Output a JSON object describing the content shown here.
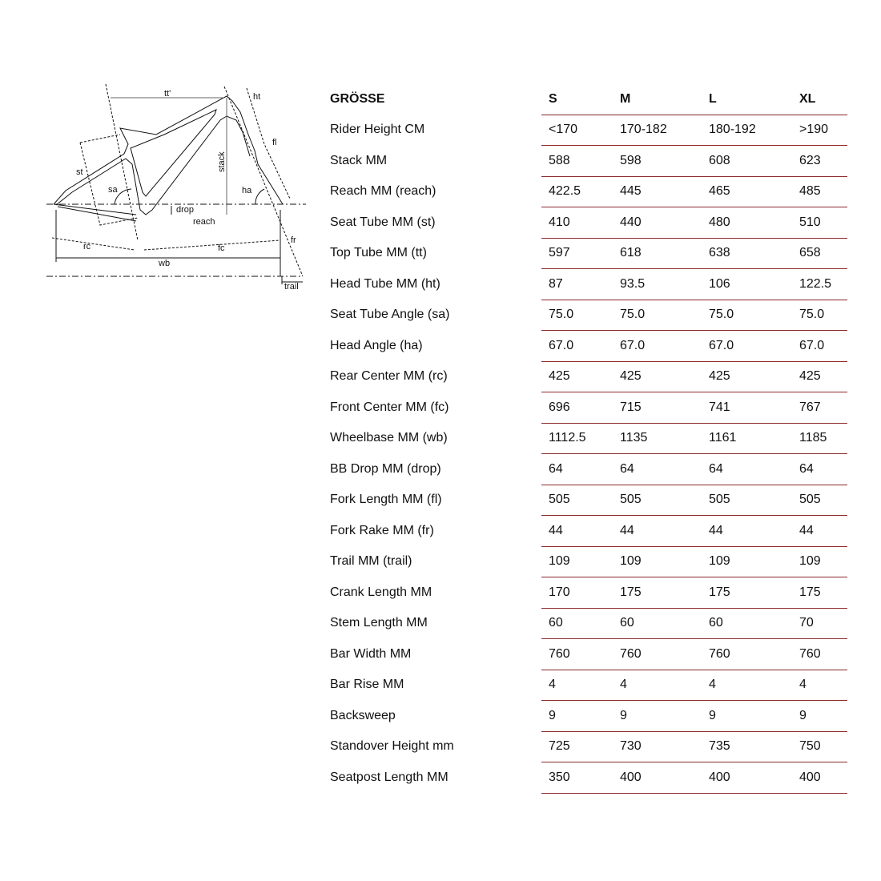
{
  "diagram": {
    "labels": [
      "tt'",
      "ht",
      "fl",
      "st",
      "stack",
      "sa",
      "ha",
      "drop",
      "reach",
      "rc",
      "fc",
      "fr",
      "wb",
      "trail"
    ]
  },
  "table": {
    "header": {
      "label": "GRÖSSE",
      "sizes": [
        "S",
        "M",
        "L",
        "XL"
      ]
    },
    "rows": [
      {
        "label": "Rider Height CM",
        "values": [
          "<170",
          "170-182",
          "180-192",
          ">190"
        ]
      },
      {
        "label": "Stack MM",
        "values": [
          "588",
          "598",
          "608",
          "623"
        ]
      },
      {
        "label": "Reach MM (reach)",
        "values": [
          "422.5",
          "445",
          "465",
          "485"
        ]
      },
      {
        "label": "Seat Tube MM (st)",
        "values": [
          "410",
          "440",
          "480",
          "510"
        ]
      },
      {
        "label": "Top Tube MM (tt)",
        "values": [
          "597",
          "618",
          "638",
          "658"
        ]
      },
      {
        "label": "Head Tube MM (ht)",
        "values": [
          "87",
          "93.5",
          "106",
          "122.5"
        ]
      },
      {
        "label": "Seat Tube Angle (sa)",
        "values": [
          "75.0",
          "75.0",
          "75.0",
          "75.0"
        ]
      },
      {
        "label": "Head Angle (ha)",
        "values": [
          "67.0",
          "67.0",
          "67.0",
          "67.0"
        ]
      },
      {
        "label": "Rear Center MM (rc)",
        "values": [
          "425",
          "425",
          "425",
          "425"
        ]
      },
      {
        "label": "Front Center MM (fc)",
        "values": [
          "696",
          "715",
          "741",
          "767"
        ]
      },
      {
        "label": "Wheelbase MM (wb)",
        "values": [
          "1112.5",
          "1135",
          "1161",
          "1185"
        ]
      },
      {
        "label": "BB Drop MM (drop)",
        "values": [
          "64",
          "64",
          "64",
          "64"
        ]
      },
      {
        "label": "Fork Length MM (fl)",
        "values": [
          "505",
          "505",
          "505",
          "505"
        ]
      },
      {
        "label": "Fork Rake MM (fr)",
        "values": [
          "44",
          "44",
          "44",
          "44"
        ]
      },
      {
        "label": "Trail MM (trail)",
        "values": [
          "109",
          "109",
          "109",
          "109"
        ]
      },
      {
        "label": "Crank Length MM",
        "values": [
          "170",
          "175",
          "175",
          "175"
        ]
      },
      {
        "label": "Stem Length MM",
        "values": [
          "60",
          "60",
          "60",
          "70"
        ]
      },
      {
        "label": "Bar Width MM",
        "values": [
          "760",
          "760",
          "760",
          "760"
        ]
      },
      {
        "label": "Bar Rise MM",
        "values": [
          "4",
          "4",
          "4",
          "4"
        ]
      },
      {
        "label": "Backsweep",
        "values": [
          "9",
          "9",
          "9",
          "9"
        ]
      },
      {
        "label": "Standover Height mm",
        "values": [
          "725",
          "730",
          "735",
          "750"
        ]
      },
      {
        "label": "Seatpost Length MM",
        "values": [
          "350",
          "400",
          "400",
          "400"
        ]
      }
    ]
  },
  "colors": {
    "rule": "#8b2a2a",
    "text": "#111111"
  }
}
